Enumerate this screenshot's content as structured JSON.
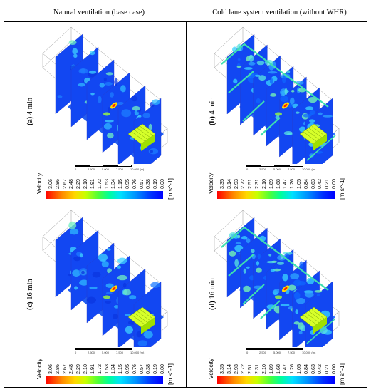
{
  "headers": {
    "left": "Natural ventilation (base case)",
    "right": "Cold lane system ventilation (without WHR)"
  },
  "panels": [
    {
      "label_letter": "(a)",
      "label_time": "4 min",
      "legend": {
        "title": "Velocity",
        "unit": "[m s^-1]",
        "ticks": [
          "3.06",
          "2.86",
          "2.67",
          "2.48",
          "2.29",
          "2.10",
          "1.91",
          "1.72",
          "1.53",
          "1.34",
          "1.15",
          "0.95",
          "0.76",
          "0.57",
          "0.38",
          "0.19",
          "0.00"
        ]
      }
    },
    {
      "label_letter": "(b)",
      "label_time": "4 min",
      "legend": {
        "title": "Velocity",
        "unit": "[m s^-1]",
        "ticks": [
          "3.35",
          "3.14",
          "2.93",
          "2.72",
          "2.51",
          "2.31",
          "2.10",
          "1.89",
          "1.68",
          "1.47",
          "1.26",
          "1.05",
          "0.84",
          "0.63",
          "0.42",
          "0.21",
          "0.00"
        ]
      }
    },
    {
      "label_letter": "(c)",
      "label_time": "16 min",
      "legend": {
        "title": "Velocity",
        "unit": "[m s^-1]",
        "ticks": [
          "3.06",
          "2.86",
          "2.67",
          "2.48",
          "2.29",
          "2.10",
          "1.91",
          "1.72",
          "1.53",
          "1.34",
          "1.15",
          "0.95",
          "0.76",
          "0.57",
          "0.38",
          "0.19",
          "0.00"
        ]
      }
    },
    {
      "label_letter": "(d)",
      "label_time": "16 min",
      "legend": {
        "title": "Velocity",
        "unit": "[m s^-1]",
        "ticks": [
          "3.35",
          "3.14",
          "2.93",
          "2.72",
          "2.51",
          "2.31",
          "2.10",
          "1.89",
          "1.68",
          "1.47",
          "1.26",
          "1.05",
          "0.84",
          "0.63",
          "0.42",
          "0.21",
          "0.00"
        ]
      }
    }
  ],
  "scale_bar": {
    "ticks": [
      "0",
      "2.500",
      "5.000",
      "7.500",
      "10.000 (m)"
    ]
  }
}
